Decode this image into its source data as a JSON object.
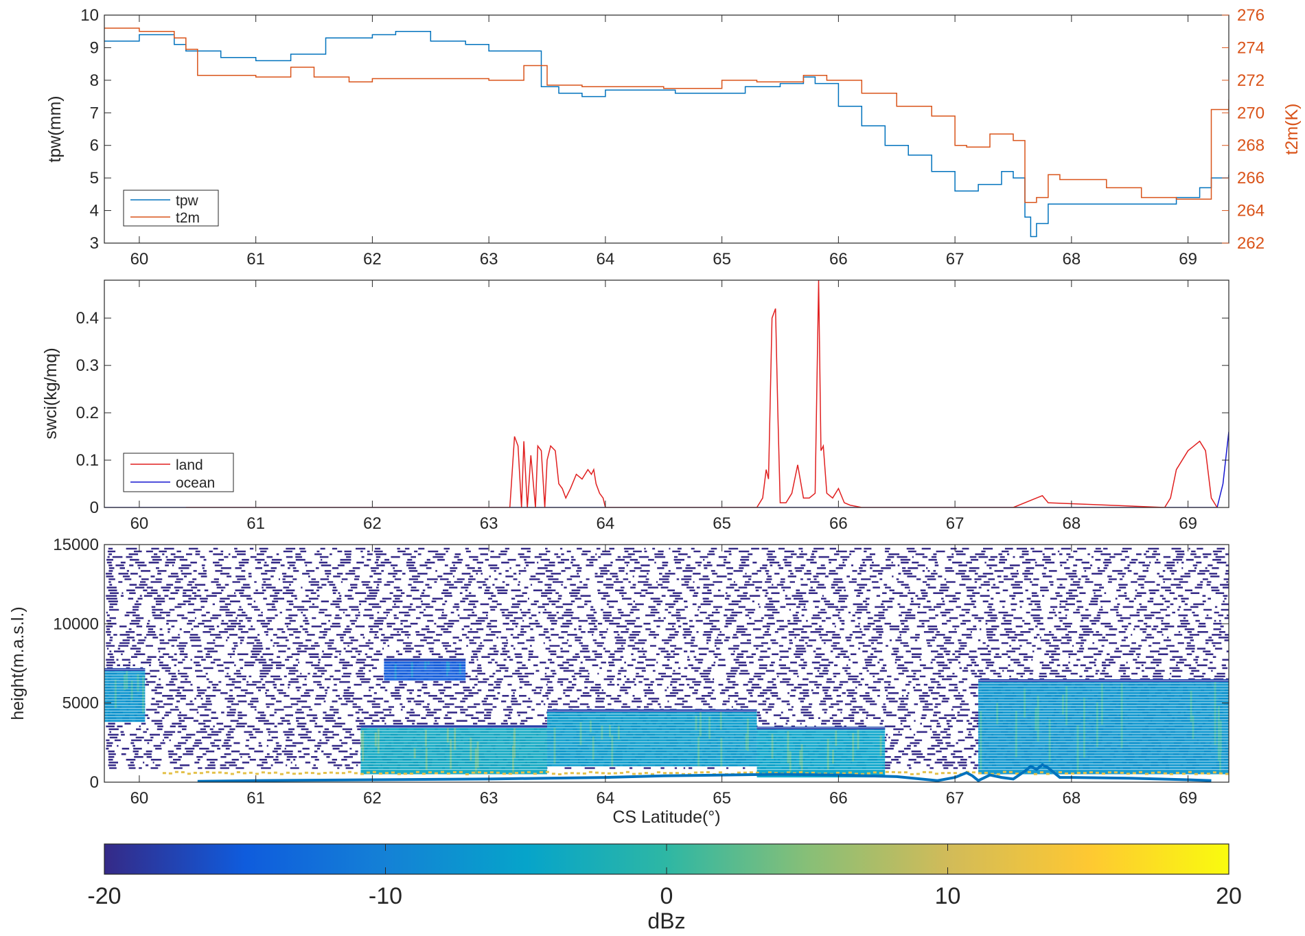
{
  "chart_data": [
    {
      "type": "line",
      "xlim": [
        59.7,
        69.35
      ],
      "xticks": [
        60,
        61,
        62,
        63,
        64,
        65,
        66,
        67,
        68,
        69
      ],
      "ylabel": "tpw(mm)",
      "ylim": [
        3,
        10
      ],
      "yticks": [
        3,
        4,
        5,
        6,
        7,
        8,
        9,
        10
      ],
      "ylabel_right": "t2m(K)",
      "ylim_right": [
        262,
        276
      ],
      "yticks_right": [
        262,
        264,
        266,
        268,
        270,
        272,
        274,
        276
      ],
      "legend": "bottom-left",
      "colors": {
        "tpw": "#0072BD",
        "t2m": "#D95319",
        "right_axis": "#D95319"
      },
      "series": [
        {
          "name": "tpw",
          "axis": "left",
          "x": [
            59.7,
            60.0,
            60.3,
            60.4,
            60.7,
            61.0,
            61.3,
            61.6,
            61.8,
            62.0,
            62.2,
            62.5,
            62.8,
            63.0,
            63.3,
            63.45,
            63.6,
            63.8,
            64.0,
            64.3,
            64.6,
            64.9,
            65.2,
            65.5,
            65.7,
            65.8,
            66.0,
            66.2,
            66.4,
            66.6,
            66.8,
            67.0,
            67.2,
            67.4,
            67.5,
            67.6,
            67.65,
            67.7,
            67.8,
            68.0,
            68.3,
            68.6,
            68.9,
            69.1,
            69.2,
            69.35
          ],
          "y": [
            9.2,
            9.4,
            9.1,
            8.9,
            8.7,
            8.6,
            8.8,
            9.3,
            9.3,
            9.4,
            9.5,
            9.2,
            9.1,
            8.9,
            8.9,
            7.8,
            7.6,
            7.5,
            7.7,
            7.7,
            7.6,
            7.6,
            7.8,
            7.9,
            8.1,
            7.9,
            7.2,
            6.6,
            6.0,
            5.7,
            5.2,
            4.6,
            4.8,
            5.2,
            5.0,
            3.8,
            3.2,
            3.6,
            4.2,
            4.2,
            4.2,
            4.2,
            4.4,
            4.7,
            5.0,
            5.1
          ]
        },
        {
          "name": "t2m",
          "axis": "right",
          "x": [
            59.7,
            60.0,
            60.3,
            60.35,
            60.4,
            60.5,
            61.0,
            61.3,
            61.5,
            61.8,
            62.0,
            62.4,
            62.8,
            63.0,
            63.3,
            63.4,
            63.5,
            63.8,
            64.0,
            64.5,
            65.0,
            65.3,
            65.7,
            65.9,
            66.2,
            66.5,
            66.8,
            67.0,
            67.1,
            67.3,
            67.5,
            67.6,
            67.7,
            67.8,
            67.9,
            68.0,
            68.3,
            68.6,
            68.9,
            69.2,
            69.35
          ],
          "y": [
            275.2,
            275.0,
            274.6,
            274.6,
            273.9,
            272.3,
            272.2,
            272.8,
            272.2,
            271.9,
            272.1,
            272.1,
            272.1,
            272.0,
            272.9,
            272.9,
            271.7,
            271.6,
            271.6,
            271.5,
            272.0,
            271.9,
            272.3,
            272.0,
            271.2,
            270.4,
            269.8,
            268.0,
            267.9,
            268.7,
            268.3,
            264.5,
            264.8,
            266.2,
            265.9,
            265.9,
            265.4,
            264.8,
            264.7,
            270.2,
            270.8
          ]
        }
      ]
    },
    {
      "type": "line",
      "xlim": [
        59.7,
        69.35
      ],
      "xticks": [
        60,
        61,
        62,
        63,
        64,
        65,
        66,
        67,
        68,
        69
      ],
      "ylabel": "swci(kg/mq)",
      "ylim": [
        0,
        0.48
      ],
      "yticks": [
        0,
        0.1,
        0.2,
        0.3,
        0.4
      ],
      "legend": "bottom-left",
      "colors": {
        "land": "#E01F1F",
        "ocean": "#1515D0"
      },
      "series": [
        {
          "name": "land",
          "x": [
            60.4,
            63.18,
            63.22,
            63.25,
            63.28,
            63.3,
            63.33,
            63.36,
            63.4,
            63.42,
            63.45,
            63.48,
            63.5,
            63.53,
            63.57,
            63.6,
            63.63,
            63.66,
            63.7,
            63.75,
            63.8,
            63.85,
            63.88,
            63.9,
            63.92,
            63.95,
            63.98,
            64.0,
            65.3,
            65.35,
            65.38,
            65.4,
            65.43,
            65.46,
            65.48,
            65.5,
            65.55,
            65.6,
            65.65,
            65.7,
            65.75,
            65.8,
            65.83,
            65.85,
            65.87,
            65.9,
            65.95,
            66.0,
            66.05,
            66.1,
            66.2,
            66.5,
            67.5,
            67.7,
            67.75,
            67.8,
            68.8,
            68.85,
            68.9,
            69.0,
            69.05,
            69.1,
            69.15,
            69.2,
            69.25
          ],
          "y": [
            0,
            0,
            0.15,
            0.13,
            0,
            0.14,
            0,
            0.11,
            0,
            0.13,
            0.12,
            0,
            0.1,
            0.13,
            0.12,
            0.05,
            0.04,
            0.02,
            0.04,
            0.07,
            0.06,
            0.08,
            0.07,
            0.08,
            0.05,
            0.03,
            0.02,
            0,
            0,
            0.02,
            0.08,
            0.06,
            0.4,
            0.42,
            0.2,
            0.01,
            0.01,
            0.03,
            0.09,
            0.02,
            0.02,
            0.03,
            0.48,
            0.12,
            0.13,
            0.03,
            0.02,
            0.04,
            0.01,
            0.005,
            0,
            0,
            0,
            0.02,
            0.025,
            0.01,
            0,
            0.02,
            0.08,
            0.12,
            0.13,
            0.14,
            0.12,
            0.02,
            0
          ]
        },
        {
          "name": "ocean",
          "x": [
            59.7,
            60.4,
            66.85,
            67.0,
            69.25,
            69.3,
            69.35
          ],
          "y": [
            0,
            0,
            0,
            0,
            0,
            0.05,
            0.16
          ]
        }
      ]
    },
    {
      "type": "heatmap",
      "xlabel": "CS Latitude(°)",
      "xlim": [
        59.7,
        69.35
      ],
      "xticks": [
        60,
        61,
        62,
        63,
        64,
        65,
        66,
        67,
        68,
        69
      ],
      "ylabel": "height(m.a.s.l.)",
      "ylim": [
        0,
        15000
      ],
      "yticks": [
        0,
        5000,
        10000,
        15000
      ],
      "colorbar": {
        "label": "dBz",
        "range": [
          -20,
          20
        ],
        "ticks": [
          -20,
          -10,
          0,
          10,
          20
        ],
        "colormap": "parula",
        "position": "bottom"
      },
      "cloud_layers": [
        {
          "x0": 59.7,
          "x1": 60.05,
          "base": 3800,
          "top": 7200,
          "dbz": -7
        },
        {
          "x0": 61.9,
          "x1": 63.5,
          "base": 500,
          "top": 3600,
          "dbz": -4
        },
        {
          "x0": 62.1,
          "x1": 62.8,
          "base": 6400,
          "top": 7800,
          "dbz": -15
        },
        {
          "x0": 63.5,
          "x1": 65.3,
          "base": 1000,
          "top": 4600,
          "dbz": -6
        },
        {
          "x0": 65.3,
          "x1": 66.4,
          "base": 300,
          "top": 3500,
          "dbz": -5
        },
        {
          "x0": 67.2,
          "x1": 69.35,
          "base": 500,
          "top": 6500,
          "dbz": -7
        }
      ],
      "surface_line": {
        "color": "#0072BD",
        "x": [
          60.5,
          61.0,
          62.0,
          63.0,
          63.5,
          64.0,
          64.5,
          65.0,
          65.5,
          66.0,
          66.5,
          66.85,
          67.0,
          67.1,
          67.15,
          67.2,
          67.3,
          67.4,
          67.5,
          67.6,
          67.65,
          67.7,
          67.75,
          67.8,
          67.85,
          67.9,
          68.0,
          68.5,
          69.0,
          69.2
        ],
        "y": [
          50,
          100,
          150,
          200,
          250,
          300,
          400,
          450,
          500,
          450,
          350,
          100,
          300,
          600,
          400,
          100,
          450,
          300,
          200,
          700,
          1000,
          800,
          1100,
          900,
          600,
          300,
          300,
          250,
          150,
          100
        ]
      }
    }
  ]
}
